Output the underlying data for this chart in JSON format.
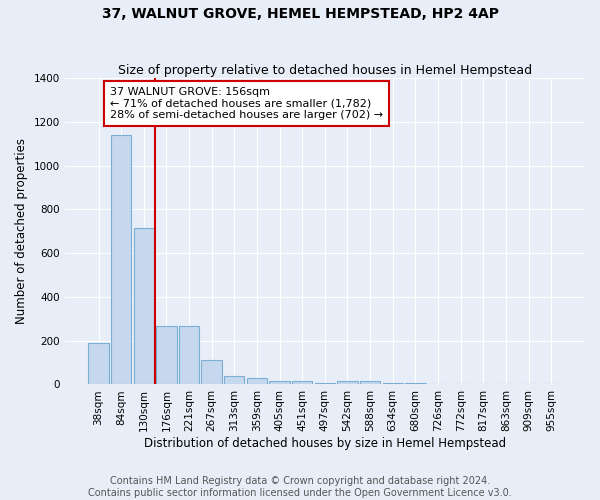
{
  "title": "37, WALNUT GROVE, HEMEL HEMPSTEAD, HP2 4AP",
  "subtitle": "Size of property relative to detached houses in Hemel Hempstead",
  "xlabel": "Distribution of detached houses by size in Hemel Hempstead",
  "ylabel": "Number of detached properties",
  "bar_color": "#c5d8ee",
  "bar_edge_color": "#7bafd4",
  "background_color": "#e8eef7",
  "grid_color": "#ffffff",
  "annotation_line_color": "#cc0000",
  "annotation_box_color": "#ffffff",
  "annotation_box_edge": "#cc0000",
  "annotation_text": "37 WALNUT GROVE: 156sqm\n← 71% of detached houses are smaller (1,782)\n28% of semi-detached houses are larger (702) →",
  "categories": [
    "38sqm",
    "84sqm",
    "130sqm",
    "176sqm",
    "221sqm",
    "267sqm",
    "313sqm",
    "359sqm",
    "405sqm",
    "451sqm",
    "497sqm",
    "542sqm",
    "588sqm",
    "634sqm",
    "680sqm",
    "726sqm",
    "772sqm",
    "817sqm",
    "863sqm",
    "909sqm",
    "955sqm"
  ],
  "values": [
    190,
    1140,
    715,
    265,
    265,
    110,
    38,
    30,
    17,
    17,
    7,
    15,
    15,
    7,
    7,
    0,
    0,
    0,
    0,
    0,
    0
  ],
  "ylim": [
    0,
    1400
  ],
  "yticks": [
    0,
    200,
    400,
    600,
    800,
    1000,
    1200,
    1400
  ],
  "footer1": "Contains HM Land Registry data © Crown copyright and database right 2024.",
  "footer2": "Contains public sector information licensed under the Open Government Licence v3.0.",
  "line_x_index": 2.5,
  "title_fontsize": 10,
  "subtitle_fontsize": 9,
  "axis_label_fontsize": 8.5,
  "tick_fontsize": 7.5,
  "annotation_fontsize": 8,
  "footer_fontsize": 7
}
